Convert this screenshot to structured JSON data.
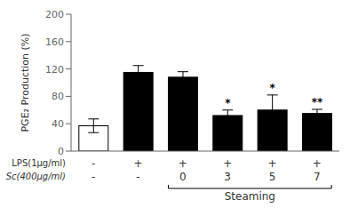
{
  "chart_data": {
    "type": "bar",
    "ylabel": "PGE₂ Production (%)",
    "categories": [
      null,
      null,
      null,
      null,
      null,
      null
    ],
    "values": [
      37,
      115,
      108,
      52,
      60,
      55
    ],
    "errors": [
      10,
      10,
      8,
      8,
      22,
      6
    ],
    "colors": [
      "white",
      "black",
      "black",
      "black",
      "black",
      "black"
    ],
    "significance": [
      null,
      null,
      null,
      "*",
      "*",
      "**"
    ],
    "ylim": [
      0,
      200
    ],
    "yticks": [
      0,
      40,
      80,
      120,
      160,
      200
    ],
    "grid": false,
    "annotations": {
      "rows": [
        {
          "label": "LPS(1μg/ml)",
          "values": [
            "-",
            "+",
            "+",
            "+",
            "+",
            "+"
          ]
        },
        {
          "label": "Sc(400μg/ml)",
          "values": [
            "-",
            "-",
            "0",
            "3",
            "5",
            "7"
          ]
        }
      ],
      "bracket": {
        "label": "Steaming",
        "bars": [
          2,
          3,
          4,
          5
        ]
      }
    }
  }
}
